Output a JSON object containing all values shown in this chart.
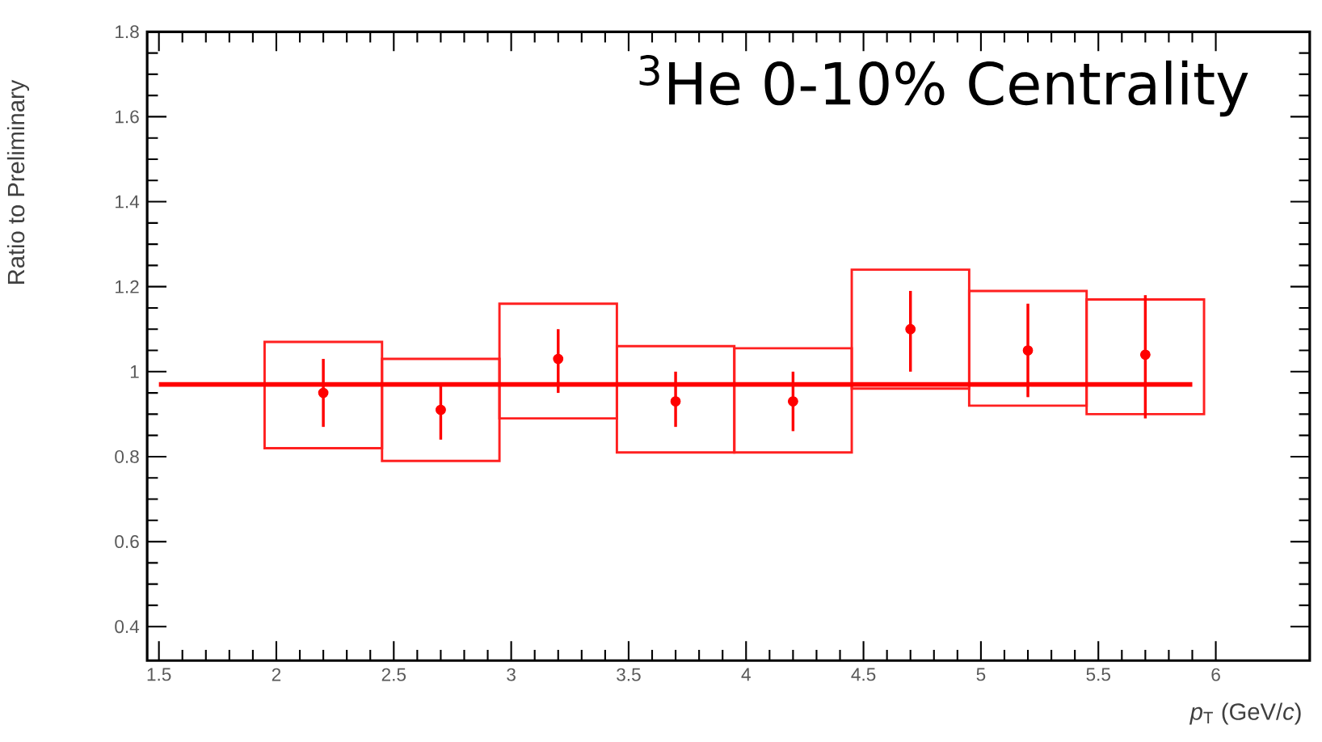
{
  "chart_data": {
    "type": "scatter",
    "title": "$^{3}$He 0-10% Centrality",
    "xlabel": "*p*$_{T}$ (GeV/*c*)",
    "ylabel": "Ratio to Preliminary",
    "xlim": [
      1.45,
      6.4
    ],
    "ylim": [
      0.32,
      1.8
    ],
    "xticks": [
      1.5,
      2,
      2.5,
      3,
      3.5,
      4,
      4.5,
      5,
      5.5,
      6
    ],
    "yticks": [
      0.4,
      0.6,
      0.8,
      1,
      1.2,
      1.4,
      1.6,
      1.8
    ],
    "series": [
      {
        "type": "bar",
        "color": "#ff2020",
        "x": [
          2.2,
          2.7,
          3.2,
          3.7,
          4.2,
          4.7,
          5.2,
          5.7
        ],
        "base": [
          0.82,
          0.79,
          0.89,
          0.81,
          0.81,
          0.96,
          0.92,
          0.9
        ],
        "values": [
          0.25,
          0.24,
          0.27,
          0.25,
          0.245,
          0.28,
          0.27,
          0.27
        ]
      },
      {
        "marker": "circle",
        "color": "#ff0000",
        "x": [
          2.2,
          2.7,
          3.2,
          3.7,
          4.2,
          4.7,
          5.2,
          5.7
        ],
        "values": [
          0.95,
          0.91,
          1.03,
          0.93,
          0.93,
          1.1,
          1.05,
          1.04
        ],
        "errors": [
          [
            0.87,
            1.03
          ],
          [
            0.84,
            0.97
          ],
          [
            0.95,
            1.1
          ],
          [
            0.87,
            1.0
          ],
          [
            0.86,
            1.0
          ],
          [
            1.0,
            1.19
          ],
          [
            0.94,
            1.16
          ],
          [
            0.89,
            1.18
          ]
        ]
      },
      {
        "type": "line",
        "color": "#ff0000",
        "x": [
          1.5,
          5.9
        ],
        "values": [
          0.97,
          0.97
        ]
      }
    ]
  }
}
